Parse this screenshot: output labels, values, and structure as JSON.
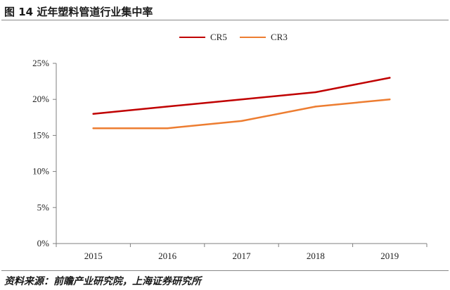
{
  "figure": {
    "title": "图 14 近年塑料管道行业集中率",
    "source": "资料来源：前瞻产业研究院，上海证券研究所"
  },
  "chart_data": {
    "type": "line",
    "title": "",
    "xlabel": "",
    "ylabel": "",
    "categories": [
      "2015",
      "2016",
      "2017",
      "2018",
      "2019"
    ],
    "series": [
      {
        "name": "CR5",
        "values": [
          18,
          19,
          20,
          21,
          23
        ],
        "color": "#c00000"
      },
      {
        "name": "CR3",
        "values": [
          16,
          16,
          17,
          19,
          20
        ],
        "color": "#ed7d31"
      }
    ],
    "ylim": [
      0,
      25
    ],
    "yticks": [
      0,
      5,
      10,
      15,
      20,
      25
    ],
    "ytick_labels": [
      "0%",
      "5%",
      "10%",
      "15%",
      "20%",
      "25%"
    ],
    "grid": false,
    "legend": "top-center"
  }
}
